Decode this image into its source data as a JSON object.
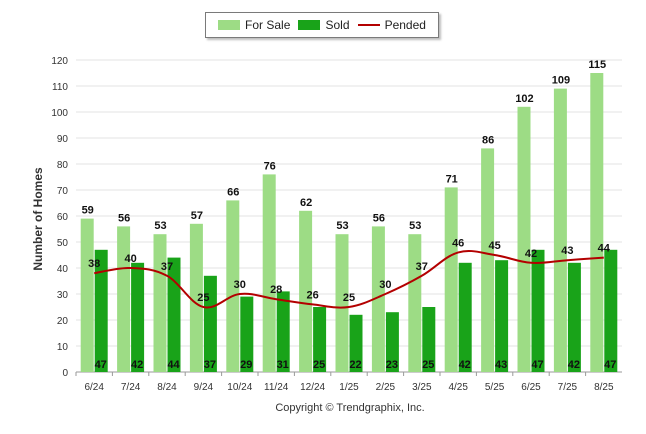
{
  "chart_data": {
    "type": "bar",
    "categories": [
      "6/24",
      "7/24",
      "8/24",
      "9/24",
      "10/24",
      "11/24",
      "12/24",
      "1/25",
      "2/25",
      "3/25",
      "4/25",
      "5/25",
      "6/25",
      "7/25",
      "8/25"
    ],
    "series": [
      {
        "name": "For Sale",
        "type": "bar",
        "color": "#9ddc85",
        "values": [
          59,
          56,
          53,
          57,
          66,
          76,
          62,
          53,
          56,
          53,
          71,
          86,
          102,
          109,
          115
        ]
      },
      {
        "name": "Sold",
        "type": "bar",
        "color": "#19a319",
        "values": [
          47,
          42,
          44,
          37,
          29,
          31,
          25,
          22,
          23,
          25,
          42,
          43,
          47,
          42,
          47
        ]
      },
      {
        "name": "Pended",
        "type": "line",
        "color": "#b30000",
        "values": [
          38,
          40,
          37,
          25,
          30,
          28,
          26,
          25,
          30,
          37,
          46,
          45,
          42,
          43,
          44
        ]
      }
    ],
    "ylabel": "Number of Homes",
    "ylim": [
      0,
      120
    ],
    "yticks": [
      0,
      10,
      20,
      30,
      40,
      50,
      60,
      70,
      80,
      90,
      100,
      110,
      120
    ],
    "grid": true,
    "legend_position": "top-center"
  },
  "footer": {
    "copyright": "Copyright © Trendgraphix, Inc."
  }
}
